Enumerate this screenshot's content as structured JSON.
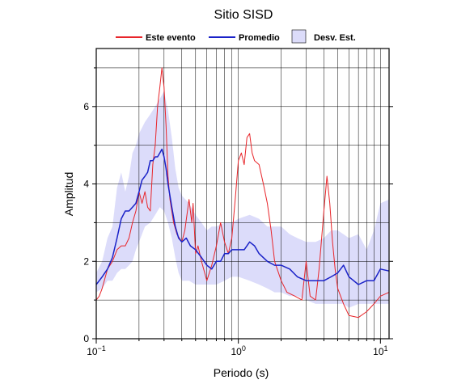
{
  "chart_data": {
    "type": "line",
    "title": "Sitio SISD",
    "xlabel": "Periodo (s)",
    "ylabel": "Amplitud",
    "x_scale": "log",
    "xlim": [
      0.1,
      11.5
    ],
    "ylim": [
      0,
      7.5
    ],
    "x_ticks": [
      {
        "value": 0.1,
        "base": "10",
        "exp": "−1"
      },
      {
        "value": 1,
        "base": "10",
        "exp": "0"
      },
      {
        "value": 10,
        "base": "10",
        "exp": "1"
      }
    ],
    "y_ticks": [
      0,
      2,
      4,
      6
    ],
    "grid": true,
    "legend_position": "top",
    "legend": [
      {
        "label": "Este evento",
        "color": "#e8252a",
        "kind": "line"
      },
      {
        "label": "Promedio",
        "color": "#1a22c8",
        "kind": "line"
      },
      {
        "label": "Desv. Est.",
        "color": "#dcdcfa",
        "kind": "patch"
      }
    ],
    "series": [
      {
        "name": "Este evento",
        "color": "#e8252a",
        "x": [
          0.1,
          0.105,
          0.11,
          0.12,
          0.13,
          0.14,
          0.15,
          0.16,
          0.17,
          0.18,
          0.19,
          0.2,
          0.21,
          0.22,
          0.23,
          0.24,
          0.25,
          0.26,
          0.27,
          0.28,
          0.29,
          0.3,
          0.31,
          0.32,
          0.33,
          0.35,
          0.37,
          0.4,
          0.42,
          0.45,
          0.47,
          0.48,
          0.5,
          0.52,
          0.55,
          0.6,
          0.65,
          0.7,
          0.75,
          0.8,
          0.85,
          0.9,
          0.95,
          1.0,
          1.05,
          1.1,
          1.15,
          1.2,
          1.25,
          1.3,
          1.4,
          1.5,
          1.6,
          1.7,
          1.8,
          2.0,
          2.2,
          2.5,
          2.8,
          3.0,
          3.2,
          3.5,
          3.7,
          4.0,
          4.2,
          4.4,
          4.6,
          4.8,
          5.0,
          5.5,
          6.0,
          7.0,
          8.0,
          9.0,
          10.0,
          11.5
        ],
        "y": [
          1.0,
          1.1,
          1.3,
          1.8,
          2.0,
          2.3,
          2.4,
          2.4,
          2.6,
          3.0,
          3.3,
          3.8,
          3.5,
          3.8,
          3.4,
          3.3,
          4.5,
          5.0,
          6.0,
          6.5,
          7.0,
          6.5,
          5.5,
          4.2,
          3.6,
          3.0,
          2.7,
          2.5,
          2.8,
          3.6,
          3.0,
          3.5,
          2.2,
          2.4,
          2.0,
          1.5,
          1.9,
          2.4,
          3.0,
          2.5,
          2.2,
          2.6,
          3.6,
          4.6,
          4.8,
          4.5,
          5.2,
          5.3,
          4.8,
          4.6,
          4.5,
          4.0,
          3.5,
          2.8,
          2.0,
          1.5,
          1.2,
          1.1,
          1.0,
          2.0,
          1.1,
          1.0,
          1.8,
          3.3,
          4.2,
          3.5,
          2.5,
          1.8,
          1.3,
          0.9,
          0.6,
          0.55,
          0.7,
          0.9,
          1.1,
          1.2
        ]
      },
      {
        "name": "Promedio",
        "color": "#1a22c8",
        "x": [
          0.1,
          0.11,
          0.12,
          0.13,
          0.14,
          0.15,
          0.16,
          0.17,
          0.18,
          0.19,
          0.2,
          0.21,
          0.22,
          0.23,
          0.24,
          0.25,
          0.26,
          0.27,
          0.28,
          0.29,
          0.3,
          0.31,
          0.32,
          0.34,
          0.36,
          0.38,
          0.4,
          0.43,
          0.46,
          0.5,
          0.55,
          0.6,
          0.65,
          0.7,
          0.75,
          0.8,
          0.85,
          0.9,
          1.0,
          1.1,
          1.2,
          1.3,
          1.4,
          1.6,
          1.8,
          2.0,
          2.3,
          2.6,
          3.0,
          3.5,
          4.0,
          4.5,
          5.0,
          5.5,
          6.0,
          7.0,
          8.0,
          9.0,
          10.0,
          11.5
        ],
        "y": [
          1.4,
          1.6,
          1.8,
          2.1,
          2.6,
          3.1,
          3.3,
          3.3,
          3.4,
          3.5,
          3.8,
          4.1,
          4.2,
          4.3,
          4.6,
          4.6,
          4.7,
          4.7,
          4.8,
          4.9,
          4.7,
          4.4,
          4.0,
          3.4,
          2.9,
          2.6,
          2.5,
          2.6,
          2.4,
          2.3,
          2.1,
          1.9,
          1.8,
          2.0,
          2.0,
          2.2,
          2.2,
          2.3,
          2.3,
          2.3,
          2.5,
          2.4,
          2.2,
          2.0,
          1.9,
          1.9,
          1.8,
          1.6,
          1.5,
          1.5,
          1.5,
          1.6,
          1.7,
          1.9,
          1.6,
          1.4,
          1.5,
          1.5,
          1.8,
          1.75
        ]
      }
    ],
    "band": {
      "name": "Desv. Est.",
      "color": "#dcdcfa",
      "x": [
        0.1,
        0.11,
        0.12,
        0.13,
        0.14,
        0.15,
        0.16,
        0.17,
        0.18,
        0.19,
        0.2,
        0.22,
        0.24,
        0.26,
        0.28,
        0.3,
        0.32,
        0.34,
        0.36,
        0.38,
        0.4,
        0.45,
        0.5,
        0.55,
        0.6,
        0.65,
        0.7,
        0.8,
        0.9,
        1.0,
        1.2,
        1.4,
        1.6,
        1.8,
        2.0,
        2.3,
        2.6,
        3.0,
        3.5,
        4.0,
        4.5,
        5.0,
        5.5,
        6.0,
        7.0,
        8.0,
        9.0,
        10.0,
        11.5
      ],
      "upper": [
        1.7,
        2.0,
        2.6,
        2.9,
        3.9,
        4.3,
        3.8,
        4.2,
        4.8,
        5.0,
        5.3,
        5.6,
        5.8,
        6.0,
        6.2,
        6.4,
        5.9,
        5.2,
        4.4,
        3.9,
        3.7,
        3.5,
        3.2,
        3.0,
        2.8,
        2.9,
        2.9,
        3.0,
        3.0,
        3.1,
        3.2,
        3.1,
        2.9,
        2.9,
        2.9,
        2.7,
        2.6,
        2.5,
        2.5,
        2.6,
        2.8,
        2.8,
        2.7,
        2.6,
        2.7,
        2.3,
        2.8,
        3.5,
        3.6
      ],
      "lower": [
        1.2,
        1.3,
        1.5,
        1.5,
        1.7,
        1.8,
        1.8,
        1.9,
        2.0,
        2.3,
        2.5,
        2.9,
        3.0,
        3.2,
        3.4,
        3.3,
        3.0,
        2.6,
        2.1,
        1.7,
        1.5,
        1.5,
        1.4,
        1.4,
        1.4,
        1.4,
        1.4,
        1.5,
        1.6,
        1.6,
        1.5,
        1.4,
        1.3,
        1.2,
        1.2,
        1.1,
        1.1,
        1.0,
        0.9,
        0.9,
        0.9,
        0.9,
        0.9,
        0.8,
        0.9,
        0.9,
        0.9,
        0.9,
        0.9
      ]
    }
  }
}
